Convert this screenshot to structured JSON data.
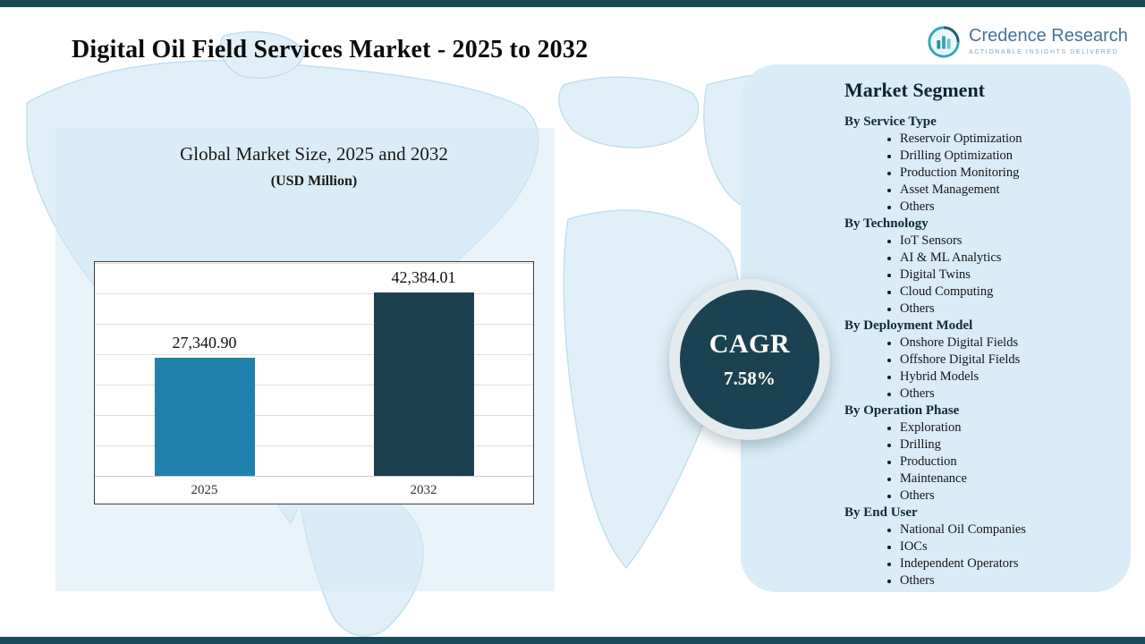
{
  "page": {
    "title": "Digital Oil Field Services Market - 2025 to 2032"
  },
  "brand": {
    "name": "Credence Research",
    "tagline": "Actionable Insights Delivered"
  },
  "chart": {
    "title": "Global Market Size, 2025 and 2032",
    "subtitle": "(USD Million)"
  },
  "chart_data": {
    "type": "bar",
    "categories": [
      "2025",
      "2032"
    ],
    "values": [
      27340.9,
      42384.01
    ],
    "value_labels": [
      "27,340.90",
      "42,384.01"
    ],
    "title": "Global Market Size, 2025 and 2032",
    "unit": "USD Million",
    "xlabel": "",
    "ylabel": "",
    "ylim": [
      0,
      45000
    ],
    "gridlines": true,
    "legend": false,
    "bar_colors": [
      "#2181ad",
      "#1d3e4f"
    ]
  },
  "cagr": {
    "label": "CAGR",
    "value": "7.58%"
  },
  "segments": {
    "title": "Market Segment",
    "groups": [
      {
        "label": "By Service Type",
        "items": [
          "Reservoir Optimization",
          "Drilling Optimization",
          "Production Monitoring",
          "Asset Management",
          "Others"
        ]
      },
      {
        "label": "By Technology",
        "items": [
          "IoT Sensors",
          "AI & ML Analytics",
          "Digital Twins",
          "Cloud Computing",
          "Others"
        ]
      },
      {
        "label": "By Deployment Model",
        "items": [
          "Onshore Digital Fields",
          "Offshore Digital Fields",
          "Hybrid Models",
          "Others"
        ]
      },
      {
        "label": "By Operation Phase",
        "items": [
          "Exploration",
          "Drilling",
          "Production",
          "Maintenance",
          "Others"
        ]
      },
      {
        "label": "By End User",
        "items": [
          "National Oil Companies",
          "IOCs",
          "Independent Operators",
          "Others"
        ]
      }
    ]
  },
  "colors": {
    "accent_dark": "#1b4252",
    "panel_bg": "#d9ecf7"
  }
}
